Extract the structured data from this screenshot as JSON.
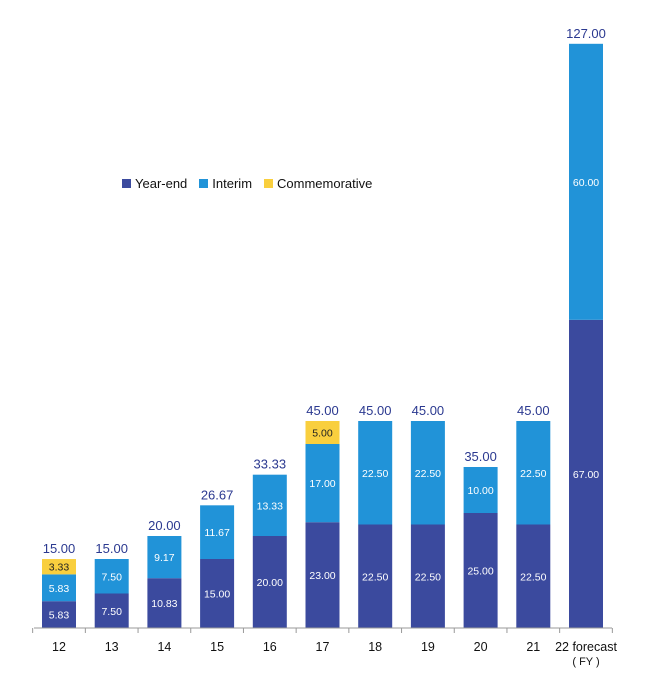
{
  "chart_data": {
    "type": "bar",
    "stacked": true,
    "title": "",
    "xlabel": "",
    "ylabel": "",
    "ylim": [
      0,
      127
    ],
    "categories": [
      "12",
      "13",
      "14",
      "15",
      "16",
      "17",
      "18",
      "19",
      "20",
      "21",
      "22 forecast"
    ],
    "category_sublabels": [
      "",
      "",
      "",
      "",
      "",
      "",
      "",
      "",
      "",
      "",
      "( FY )"
    ],
    "series": [
      {
        "name": "Year-end",
        "color": "#3b4a9e",
        "values": [
          5.83,
          7.5,
          10.83,
          15.0,
          20.0,
          23.0,
          22.5,
          22.5,
          25.0,
          22.5,
          67.0
        ],
        "labels": [
          "5.83",
          "7.50",
          "10.83",
          "15.00",
          "20.00",
          "23.00",
          "22.50",
          "22.50",
          "25.00",
          "22.50",
          "67.00"
        ]
      },
      {
        "name": "Interim",
        "color": "#2193d8",
        "values": [
          5.83,
          7.5,
          9.17,
          11.67,
          13.33,
          17.0,
          22.5,
          22.5,
          10.0,
          22.5,
          60.0
        ],
        "labels": [
          "5.83",
          "7.50",
          "9.17",
          "11.67",
          "13.33",
          "17.00",
          "22.50",
          "22.50",
          "10.00",
          "22.50",
          "60.00"
        ]
      },
      {
        "name": "Commemorative",
        "color": "#f9cf3e",
        "values": [
          3.33,
          0,
          0,
          0,
          0,
          5.0,
          0,
          0,
          0,
          0,
          0
        ],
        "labels": [
          "3.33",
          "",
          "",
          "",
          "",
          "5.00",
          "",
          "",
          "",
          "",
          ""
        ]
      }
    ],
    "totals": [
      15.0,
      15.0,
      20.0,
      26.67,
      33.33,
      45.0,
      45.0,
      45.0,
      35.0,
      45.0,
      127.0
    ],
    "total_labels": [
      "15.00",
      "15.00",
      "20.00",
      "26.67",
      "33.33",
      "45.00",
      "45.00",
      "45.00",
      "35.00",
      "45.00",
      "127.00"
    ],
    "legend_position": "upper-left",
    "colors": {
      "total_label": "#2b3990",
      "segment_label": "#ffffff",
      "commemorative_label": "#222222",
      "axis": "#999999",
      "tick_label": "#111111"
    }
  }
}
